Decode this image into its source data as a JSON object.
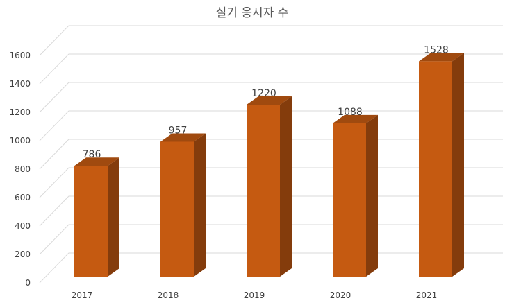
{
  "chart_data": {
    "type": "bar",
    "title": "실기 응시자 수",
    "categories": [
      "2017",
      "2018",
      "2019",
      "2020",
      "2021"
    ],
    "values": [
      786,
      957,
      1220,
      1088,
      1528
    ],
    "data_labels": [
      "786",
      "957",
      "1220",
      "1088",
      "1528"
    ],
    "ylim": [
      0,
      1600
    ],
    "yticks": [
      "0",
      "200",
      "400",
      "600",
      "800",
      "1000",
      "1200",
      "1400",
      "1600"
    ],
    "grid": true,
    "legend": "none",
    "colors": {
      "bar_front": "#C55A11",
      "bar_side": "#843C0C",
      "bar_top": "#A04A0F",
      "grid": "#D9D9D9"
    }
  }
}
